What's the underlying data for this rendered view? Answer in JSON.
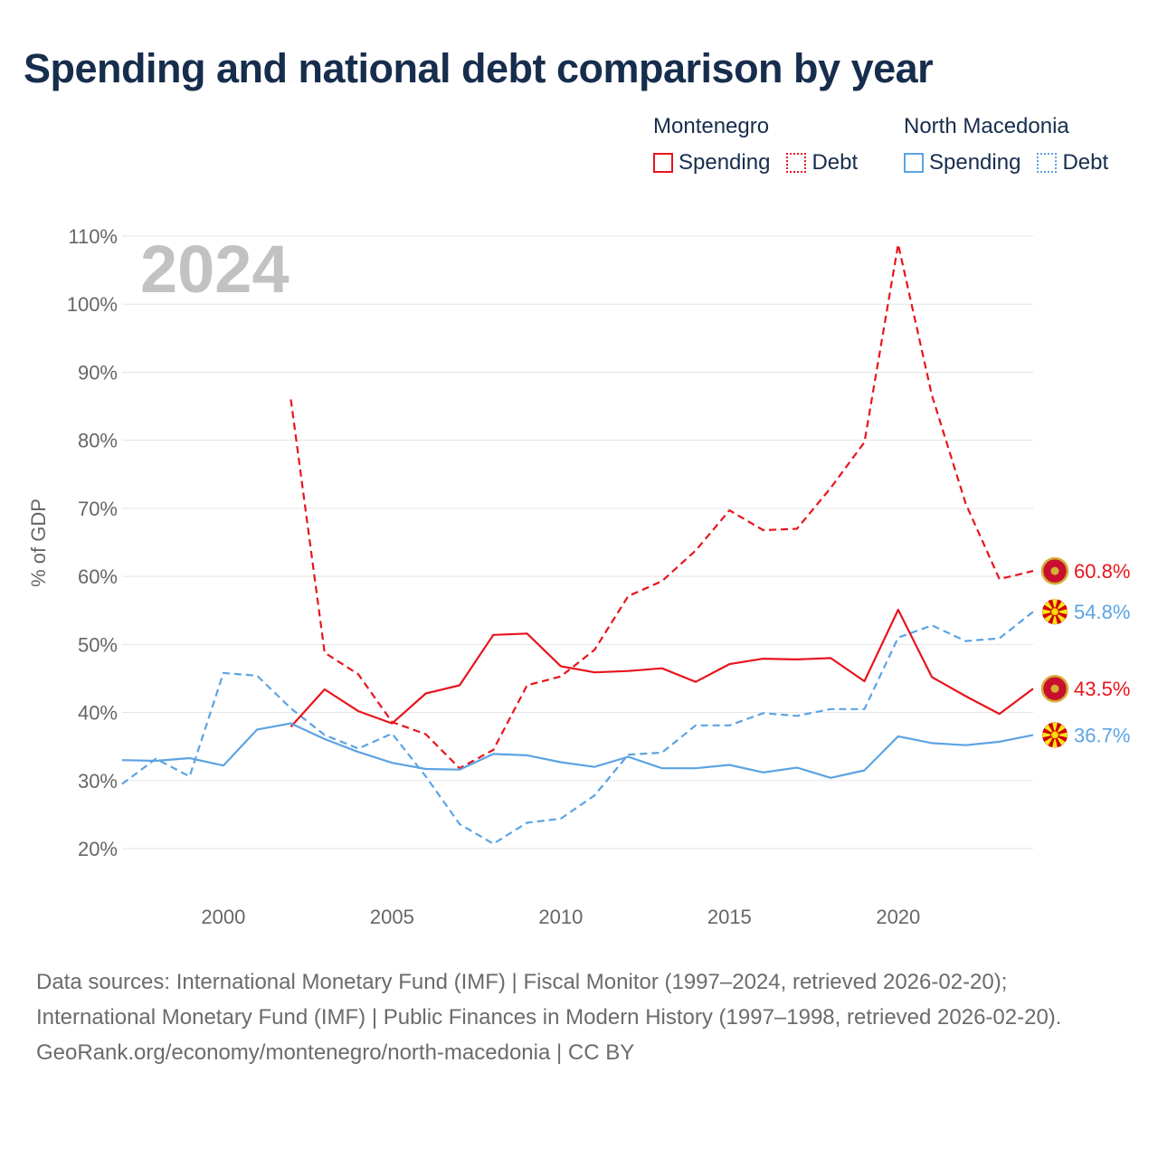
{
  "title": "Spending and national debt comparison by year",
  "legend": {
    "groups": [
      {
        "country": "Montenegro",
        "items": [
          "Spending",
          "Debt"
        ]
      },
      {
        "country": "North Macedonia",
        "items": [
          "Spending",
          "Debt"
        ]
      }
    ]
  },
  "colors": {
    "montenegro": "#e8141c",
    "north_macedonia": "#5ca3e3",
    "grid": "#e5e5e5",
    "axis_text": "#666666",
    "year_watermark": "#c2c2c2"
  },
  "chart_data": {
    "type": "line",
    "year_label": "2024",
    "ylabel": "% of GDP",
    "ylim": [
      20,
      110
    ],
    "yticks": [
      20,
      30,
      40,
      50,
      60,
      70,
      80,
      90,
      100,
      110
    ],
    "ytick_labels": [
      "20%",
      "30%",
      "40%",
      "50%",
      "60%",
      "70%",
      "80%",
      "90%",
      "100%",
      "110%"
    ],
    "xlim": [
      1997,
      2024
    ],
    "xticks": [
      2000,
      2005,
      2010,
      2015,
      2020
    ],
    "xtick_labels": [
      "2000",
      "2005",
      "2010",
      "2015",
      "2020"
    ],
    "series": [
      {
        "name": "Montenegro Debt",
        "country": "Montenegro",
        "metric": "Debt",
        "style": "dashed",
        "x": [
          2002,
          2003,
          2004,
          2005,
          2006,
          2007,
          2008,
          2009,
          2010,
          2011,
          2012,
          2013,
          2014,
          2015,
          2016,
          2017,
          2018,
          2019,
          2020,
          2021,
          2022,
          2023,
          2024
        ],
        "values": [
          86.0,
          48.8,
          45.6,
          38.6,
          36.8,
          31.8,
          34.5,
          44.0,
          45.3,
          49.2,
          57.1,
          59.3,
          63.8,
          69.7,
          66.8,
          67.0,
          73.0,
          79.7,
          108.8,
          86.6,
          70.7,
          59.6,
          60.8
        ],
        "end_label": "60.8%"
      },
      {
        "name": "North Macedonia Debt",
        "country": "North Macedonia",
        "metric": "Debt",
        "style": "dashed",
        "x": [
          1997,
          1998,
          1999,
          2000,
          2001,
          2002,
          2003,
          2004,
          2005,
          2006,
          2007,
          2008,
          2009,
          2010,
          2011,
          2012,
          2013,
          2014,
          2015,
          2016,
          2017,
          2018,
          2019,
          2020,
          2021,
          2022,
          2023,
          2024
        ],
        "values": [
          29.5,
          33.2,
          30.6,
          45.8,
          45.4,
          40.6,
          36.7,
          34.7,
          36.9,
          30.6,
          23.6,
          20.7,
          23.8,
          24.4,
          27.8,
          33.8,
          34.1,
          38.1,
          38.1,
          39.9,
          39.5,
          40.5,
          40.5,
          51.0,
          52.8,
          50.5,
          50.9,
          54.8
        ],
        "end_label": "54.8%"
      },
      {
        "name": "Montenegro Spending",
        "country": "Montenegro",
        "metric": "Spending",
        "style": "solid",
        "x": [
          2002,
          2003,
          2004,
          2005,
          2006,
          2007,
          2008,
          2009,
          2010,
          2011,
          2012,
          2013,
          2014,
          2015,
          2016,
          2017,
          2018,
          2019,
          2020,
          2021,
          2022,
          2023,
          2024
        ],
        "values": [
          37.9,
          43.4,
          40.2,
          38.4,
          42.8,
          44.0,
          51.4,
          51.6,
          46.8,
          45.9,
          46.1,
          46.5,
          44.5,
          47.1,
          47.9,
          47.8,
          48.0,
          44.6,
          55.1,
          45.2,
          42.4,
          39.8,
          43.5
        ],
        "end_label": "43.5%"
      },
      {
        "name": "North Macedonia Spending",
        "country": "North Macedonia",
        "metric": "Spending",
        "style": "solid",
        "x": [
          1997,
          1998,
          1999,
          2000,
          2001,
          2002,
          2003,
          2004,
          2005,
          2006,
          2007,
          2008,
          2009,
          2010,
          2011,
          2012,
          2013,
          2014,
          2015,
          2016,
          2017,
          2018,
          2019,
          2020,
          2021,
          2022,
          2023,
          2024
        ],
        "values": [
          33.0,
          32.9,
          33.3,
          32.2,
          37.5,
          38.4,
          36.1,
          34.2,
          32.6,
          31.7,
          31.6,
          33.9,
          33.7,
          32.7,
          32.0,
          33.5,
          31.8,
          31.8,
          32.3,
          31.2,
          31.9,
          30.4,
          31.5,
          36.5,
          35.5,
          35.2,
          35.7,
          36.7
        ],
        "end_label": "36.7%"
      }
    ]
  },
  "footer": {
    "sources": "Data sources: International Monetary Fund (IMF) | Fiscal Monitor (1997–2024, retrieved 2026-02-20); International Monetary Fund (IMF) | Public Finances in Modern History (1997–1998, retrieved 2026-02-20).",
    "credit": "GeoRank.org/economy/montenegro/north-macedonia | CC BY"
  }
}
